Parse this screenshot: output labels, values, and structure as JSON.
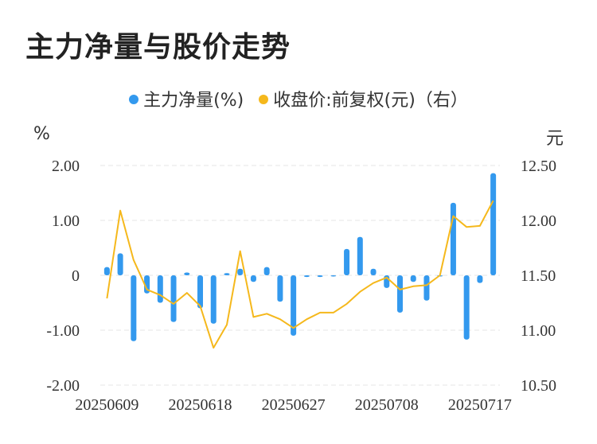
{
  "title": "主力净量与股价走势",
  "colors": {
    "bar": "#3399ee",
    "line": "#f5b81c",
    "grid": "#e5e5e5",
    "text": "#333333"
  },
  "chart_data": {
    "type": "bar+line",
    "legend": [
      {
        "name": "主力净量(%)",
        "color": "#3399ee"
      },
      {
        "name": "收盘价:前复权(元)（右）",
        "color": "#f5b81c"
      }
    ],
    "left_unit": "%",
    "right_unit": "元",
    "left_axis": {
      "range": [
        -2,
        2
      ],
      "ticks": [
        "2.00",
        "1.00",
        "0",
        "-1.00",
        "-2.00"
      ]
    },
    "right_axis": {
      "range": [
        10.5,
        12.5
      ],
      "ticks": [
        "12.50",
        "12.00",
        "11.50",
        "11.00",
        "10.50"
      ]
    },
    "x_tick_labels": [
      "20250609",
      "20250618",
      "20250627",
      "20250708",
      "20250717"
    ],
    "x_tick_index": [
      0,
      7,
      14,
      21,
      28
    ],
    "bars": [
      0.15,
      0.4,
      -1.2,
      -0.33,
      -0.5,
      -0.85,
      0.05,
      -0.6,
      -0.88,
      0.04,
      0.12,
      -0.12,
      0.15,
      -0.48,
      -1.1,
      -0.03,
      -0.03,
      -0.02,
      0.48,
      0.7,
      0.12,
      -0.23,
      -0.68,
      -0.12,
      -0.46,
      0.0,
      1.32,
      -1.17,
      -0.14,
      1.86
    ],
    "line": [
      11.29,
      12.09,
      11.64,
      11.37,
      11.32,
      11.24,
      11.34,
      11.22,
      10.84,
      11.05,
      11.72,
      11.12,
      11.15,
      11.1,
      11.02,
      11.1,
      11.16,
      11.16,
      11.24,
      11.35,
      11.43,
      11.48,
      11.37,
      11.4,
      11.41,
      11.5,
      12.04,
      11.94,
      11.95,
      12.18
    ],
    "grid": true
  }
}
